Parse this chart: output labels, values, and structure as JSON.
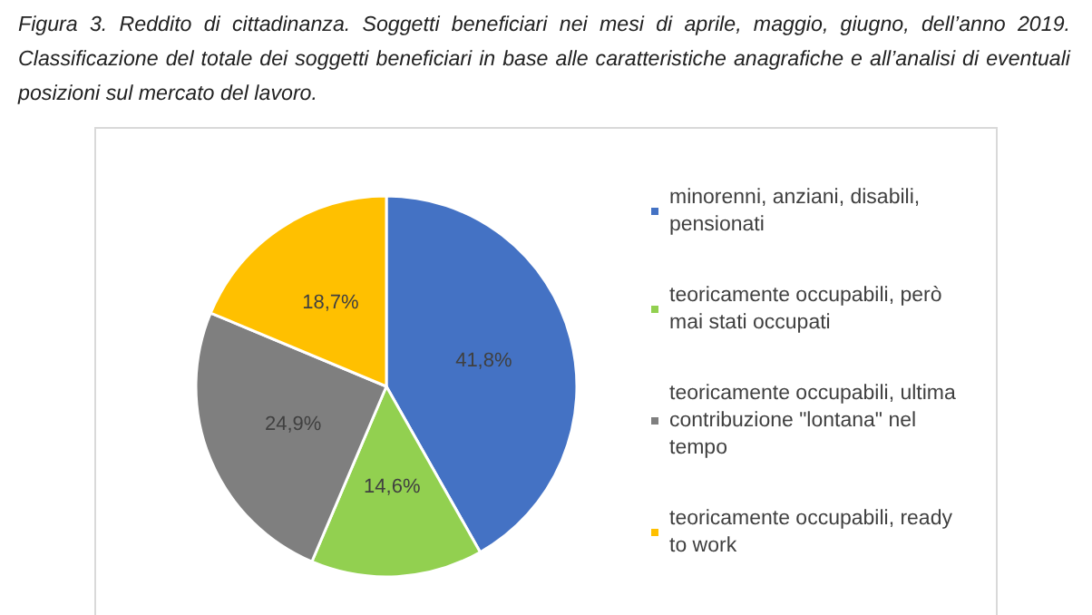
{
  "chart_data": {
    "type": "pie",
    "title": "Figura 3. Reddito di cittadinanza. Soggetti beneficiari nei mesi di aprile, maggio, giugno, dell’anno 2019. Classificazione del totale dei soggetti beneficiari in base alle caratteristiche anagrafiche e all’analisi di eventuali posizioni sul mercato del lavoro.",
    "categories": [
      "minorenni, anziani, disabili, pensionati",
      "teoricamente occupabili, però mai stati occupati",
      "teoricamente occupabili, ultima contribuzione \"lontana\" nel tempo",
      "teoricamente occupabili, ready to work"
    ],
    "values": [
      41.8,
      14.6,
      24.9,
      18.7
    ],
    "value_labels": [
      "41,8%",
      "14,6%",
      "24,9%",
      "18,7%"
    ],
    "colors": [
      "#4472c4",
      "#92d050",
      "#7f7f7f",
      "#ffc000"
    ],
    "legend": "right"
  }
}
